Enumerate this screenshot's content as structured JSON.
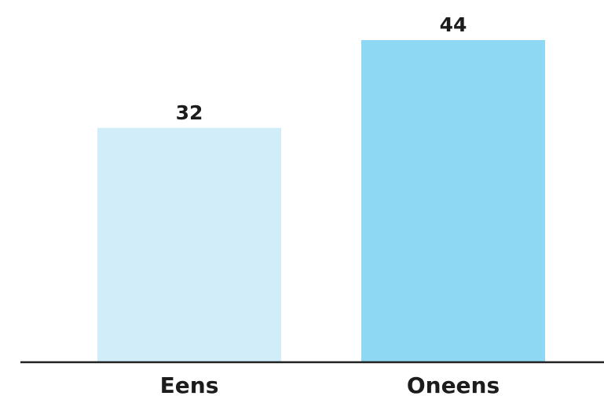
{
  "chart_data": {
    "type": "bar",
    "categories": [
      "Eens",
      "Oneens"
    ],
    "values": [
      32,
      44
    ],
    "data_labels": [
      "32",
      "44"
    ],
    "colors": [
      "#d2edfa",
      "#8fd8f3"
    ],
    "axis_color": "#222222",
    "ylim": [
      0,
      44
    ],
    "grid": false,
    "legend": "none",
    "title": "",
    "xlabel": "",
    "ylabel": ""
  }
}
